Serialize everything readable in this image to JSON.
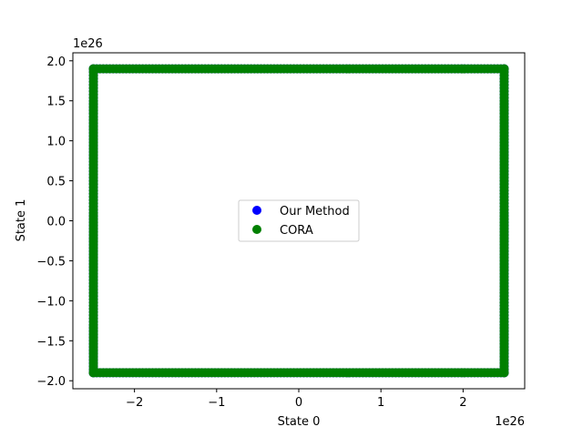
{
  "chart_data": {
    "type": "scatter",
    "title": "",
    "xlabel": "State 0",
    "ylabel": "State 1",
    "x_offset_label": "1e26",
    "y_offset_label": "1e26",
    "xlim": [
      -2.75,
      2.75
    ],
    "ylim": [
      -2.1,
      2.1
    ],
    "x_ticks": [
      -2,
      -1,
      0,
      1,
      2
    ],
    "x_tick_labels": [
      "−2",
      "−1",
      "0",
      "1",
      "2"
    ],
    "y_ticks": [
      -2.0,
      -1.5,
      -1.0,
      -0.5,
      0.0,
      0.5,
      1.0,
      1.5,
      2.0
    ],
    "y_tick_labels": [
      "−2.0",
      "−1.5",
      "−1.0",
      "−0.5",
      "0.0",
      "0.5",
      "1.0",
      "1.5",
      "2.0"
    ],
    "grid": false,
    "legend_placement": "center",
    "series": [
      {
        "name": "Our Method",
        "color": "#0000ff",
        "marker": "circle",
        "rect": {
          "x_min": -2.5,
          "x_max": 2.5,
          "y_min": -1.9,
          "y_max": 1.9
        }
      },
      {
        "name": "CORA",
        "color": "#008000",
        "marker": "circle",
        "rect": {
          "x_min": -2.5,
          "x_max": 2.5,
          "y_min": -1.9,
          "y_max": 1.9
        }
      }
    ]
  }
}
